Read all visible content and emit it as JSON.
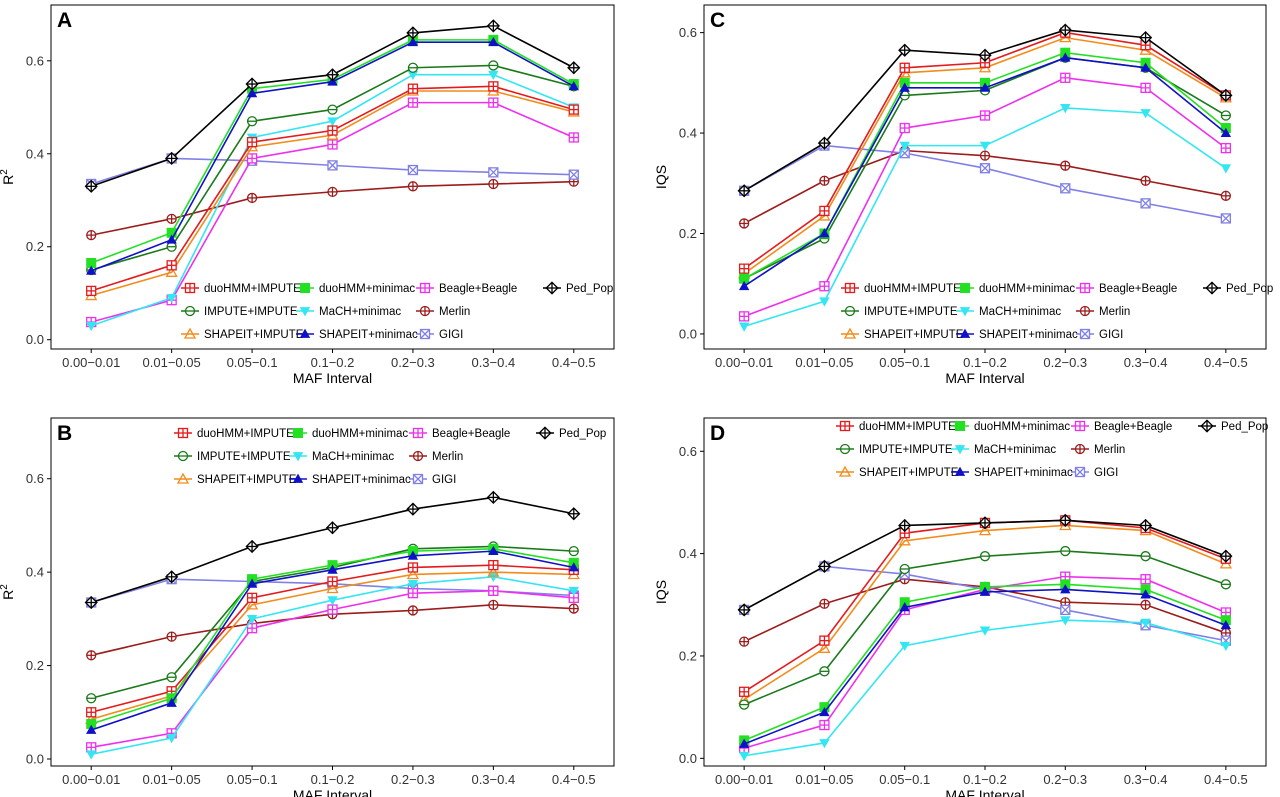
{
  "figure": {
    "panels": [
      {
        "id": "A",
        "label": "A",
        "ylabel": "R",
        "ylabel_sup": "2",
        "xlabel": "MAF Interval"
      },
      {
        "id": "C",
        "label": "C",
        "ylabel": "IQS",
        "ylabel_sup": "",
        "xlabel": "MAF Interval"
      },
      {
        "id": "B",
        "label": "B",
        "ylabel": "R",
        "ylabel_sup": "2",
        "xlabel": "MAF Interval"
      },
      {
        "id": "D",
        "label": "D",
        "ylabel": "IQS",
        "ylabel_sup": "",
        "xlabel": "MAF Interval"
      }
    ]
  },
  "legend": [
    {
      "name": "duoHMM+IMPUTE",
      "color": "#e41a1c",
      "marker": "square-plus"
    },
    {
      "name": "duoHMM+minimac",
      "color": "#22e022",
      "marker": "filled-square"
    },
    {
      "name": "Beagle+Beagle",
      "color": "#ee30ee",
      "marker": "square-plus"
    },
    {
      "name": "Ped_Pop",
      "color": "#000000",
      "marker": "diamond-plus"
    },
    {
      "name": "IMPUTE+IMPUTE",
      "color": "#1a7a1a",
      "marker": "circle-minus"
    },
    {
      "name": "MaCH+minimac",
      "color": "#33e6f2",
      "marker": "filled-triangle-down"
    },
    {
      "name": "Merlin",
      "color": "#9c1c1c",
      "marker": "circle-plus"
    },
    {
      "name": "SHAPEIT+IMPUTE",
      "color": "#f28c1c",
      "marker": "triangle-open"
    },
    {
      "name": "SHAPEIT+minimac",
      "color": "#1010c8",
      "marker": "filled-triangle-up"
    },
    {
      "name": "GIGI",
      "color": "#8080e6",
      "marker": "square-cross"
    }
  ],
  "chart_data": [
    {
      "panel": "A",
      "type": "line",
      "xlabel": "MAF Interval",
      "ylabel": "R2",
      "ylim": [
        -0.02,
        0.72
      ],
      "yticks": [
        0.0,
        0.2,
        0.4,
        0.6
      ],
      "categories": [
        "0.00−0.01",
        "0.01−0.05",
        "0.05−0.1",
        "0.1−0.2",
        "0.2−0.3",
        "0.3−0.4",
        "0.4−0.5"
      ],
      "legend_position": "bottom-inside",
      "series": [
        {
          "name": "duoHMM+IMPUTE",
          "values": [
            0.105,
            0.16,
            0.425,
            0.45,
            0.54,
            0.545,
            0.495
          ]
        },
        {
          "name": "duoHMM+minimac",
          "values": [
            0.165,
            0.23,
            0.54,
            0.56,
            0.645,
            0.645,
            0.55
          ]
        },
        {
          "name": "Beagle+Beagle",
          "values": [
            0.038,
            0.085,
            0.39,
            0.42,
            0.51,
            0.51,
            0.435
          ]
        },
        {
          "name": "Ped_Pop",
          "values": [
            0.33,
            0.39,
            0.55,
            0.57,
            0.66,
            0.675,
            0.585
          ]
        },
        {
          "name": "IMPUTE+IMPUTE",
          "values": [
            0.15,
            0.2,
            0.47,
            0.495,
            0.585,
            0.59,
            0.545
          ]
        },
        {
          "name": "MaCH+minimac",
          "values": [
            0.03,
            0.09,
            0.435,
            0.47,
            0.57,
            0.57,
            0.5
          ]
        },
        {
          "name": "Merlin",
          "values": [
            0.225,
            0.26,
            0.305,
            0.318,
            0.33,
            0.335,
            0.34
          ]
        },
        {
          "name": "SHAPEIT+IMPUTE",
          "values": [
            0.095,
            0.145,
            0.415,
            0.44,
            0.535,
            0.535,
            0.49
          ]
        },
        {
          "name": "SHAPEIT+minimac",
          "values": [
            0.148,
            0.215,
            0.53,
            0.555,
            0.64,
            0.64,
            0.545
          ]
        },
        {
          "name": "GIGI",
          "values": [
            0.335,
            0.39,
            0.385,
            0.375,
            0.365,
            0.36,
            0.355
          ]
        }
      ]
    },
    {
      "panel": "C",
      "type": "line",
      "xlabel": "MAF Interval",
      "ylabel": "IQS",
      "ylim": [
        -0.03,
        0.655
      ],
      "yticks": [
        0.0,
        0.2,
        0.4,
        0.6
      ],
      "categories": [
        "0.00−0.01",
        "0.01−0.05",
        "0.05−0.1",
        "0.1−0.2",
        "0.2−0.3",
        "0.3−0.4",
        "0.4−0.5"
      ],
      "legend_position": "bottom-inside",
      "series": [
        {
          "name": "duoHMM+IMPUTE",
          "values": [
            0.13,
            0.245,
            0.53,
            0.54,
            0.6,
            0.575,
            0.475
          ]
        },
        {
          "name": "duoHMM+minimac",
          "values": [
            0.11,
            0.2,
            0.5,
            0.5,
            0.56,
            0.54,
            0.41
          ]
        },
        {
          "name": "Beagle+Beagle",
          "values": [
            0.035,
            0.095,
            0.41,
            0.435,
            0.51,
            0.49,
            0.37
          ]
        },
        {
          "name": "Ped_Pop",
          "values": [
            0.285,
            0.38,
            0.565,
            0.555,
            0.605,
            0.59,
            0.475
          ]
        },
        {
          "name": "IMPUTE+IMPUTE",
          "values": [
            0.11,
            0.19,
            0.475,
            0.485,
            0.55,
            0.53,
            0.435
          ]
        },
        {
          "name": "MaCH+minimac",
          "values": [
            0.015,
            0.065,
            0.375,
            0.375,
            0.45,
            0.44,
            0.33
          ]
        },
        {
          "name": "Merlin",
          "values": [
            0.22,
            0.305,
            0.365,
            0.355,
            0.335,
            0.305,
            0.275
          ]
        },
        {
          "name": "SHAPEIT+IMPUTE",
          "values": [
            0.12,
            0.235,
            0.52,
            0.53,
            0.59,
            0.565,
            0.47
          ]
        },
        {
          "name": "SHAPEIT+minimac",
          "values": [
            0.095,
            0.2,
            0.49,
            0.49,
            0.55,
            0.53,
            0.4
          ]
        },
        {
          "name": "GIGI",
          "values": [
            0.285,
            0.375,
            0.36,
            0.33,
            0.29,
            0.26,
            0.23
          ]
        }
      ]
    },
    {
      "panel": "B",
      "type": "line",
      "xlabel": "MAF Interval",
      "ylabel": "R2",
      "ylim": [
        -0.015,
        0.73
      ],
      "yticks": [
        0.0,
        0.2,
        0.4,
        0.6
      ],
      "categories": [
        "0.00−0.01",
        "0.01−0.05",
        "0.05−0.1",
        "0.1−0.2",
        "0.2−0.3",
        "0.3−0.4",
        "0.4−0.5"
      ],
      "legend_position": "top-inside",
      "series": [
        {
          "name": "duoHMM+IMPUTE",
          "values": [
            0.1,
            0.145,
            0.345,
            0.38,
            0.41,
            0.415,
            0.405
          ]
        },
        {
          "name": "duoHMM+minimac",
          "values": [
            0.075,
            0.13,
            0.385,
            0.415,
            0.445,
            0.45,
            0.42
          ]
        },
        {
          "name": "Beagle+Beagle",
          "values": [
            0.025,
            0.055,
            0.28,
            0.32,
            0.355,
            0.36,
            0.345
          ]
        },
        {
          "name": "Ped_Pop",
          "values": [
            0.335,
            0.39,
            0.455,
            0.495,
            0.535,
            0.56,
            0.525
          ]
        },
        {
          "name": "IMPUTE+IMPUTE",
          "values": [
            0.13,
            0.175,
            0.38,
            0.41,
            0.45,
            0.455,
            0.445
          ]
        },
        {
          "name": "MaCH+minimac",
          "values": [
            0.01,
            0.045,
            0.3,
            0.34,
            0.375,
            0.39,
            0.36
          ]
        },
        {
          "name": "Merlin",
          "values": [
            0.222,
            0.262,
            0.29,
            0.31,
            0.318,
            0.33,
            0.322
          ]
        },
        {
          "name": "SHAPEIT+IMPUTE",
          "values": [
            0.085,
            0.135,
            0.33,
            0.365,
            0.395,
            0.4,
            0.395
          ]
        },
        {
          "name": "SHAPEIT+minimac",
          "values": [
            0.062,
            0.12,
            0.375,
            0.405,
            0.435,
            0.445,
            0.41
          ]
        },
        {
          "name": "GIGI",
          "values": [
            0.335,
            0.385,
            0.38,
            0.375,
            0.365,
            0.36,
            0.35
          ]
        }
      ]
    },
    {
      "panel": "D",
      "type": "line",
      "xlabel": "MAF Interval",
      "ylabel": "IQS",
      "ylim": [
        -0.015,
        0.665
      ],
      "yticks": [
        0.0,
        0.2,
        0.4,
        0.6
      ],
      "categories": [
        "0.00−0.01",
        "0.01−0.05",
        "0.05−0.1",
        "0.1−0.2",
        "0.2−0.3",
        "0.3−0.4",
        "0.4−0.5"
      ],
      "legend_position": "top-inside",
      "series": [
        {
          "name": "duoHMM+IMPUTE",
          "values": [
            0.13,
            0.23,
            0.44,
            0.46,
            0.465,
            0.45,
            0.39
          ]
        },
        {
          "name": "duoHMM+minimac",
          "values": [
            0.035,
            0.1,
            0.305,
            0.335,
            0.34,
            0.33,
            0.27
          ]
        },
        {
          "name": "Beagle+Beagle",
          "values": [
            0.02,
            0.065,
            0.29,
            0.33,
            0.355,
            0.35,
            0.285
          ]
        },
        {
          "name": "Ped_Pop",
          "values": [
            0.29,
            0.375,
            0.455,
            0.46,
            0.465,
            0.455,
            0.395
          ]
        },
        {
          "name": "IMPUTE+IMPUTE",
          "values": [
            0.105,
            0.17,
            0.37,
            0.395,
            0.405,
            0.395,
            0.34
          ]
        },
        {
          "name": "MaCH+minimac",
          "values": [
            0.005,
            0.03,
            0.22,
            0.25,
            0.27,
            0.265,
            0.22
          ]
        },
        {
          "name": "Merlin",
          "values": [
            0.228,
            0.302,
            0.35,
            0.335,
            0.305,
            0.3,
            0.245
          ]
        },
        {
          "name": "SHAPEIT+IMPUTE",
          "values": [
            0.115,
            0.215,
            0.425,
            0.445,
            0.455,
            0.445,
            0.38
          ]
        },
        {
          "name": "SHAPEIT+minimac",
          "values": [
            0.028,
            0.09,
            0.295,
            0.325,
            0.33,
            0.32,
            0.26
          ]
        },
        {
          "name": "GIGI",
          "values": [
            0.29,
            0.375,
            0.36,
            0.33,
            0.29,
            0.26,
            0.23
          ]
        }
      ]
    }
  ]
}
